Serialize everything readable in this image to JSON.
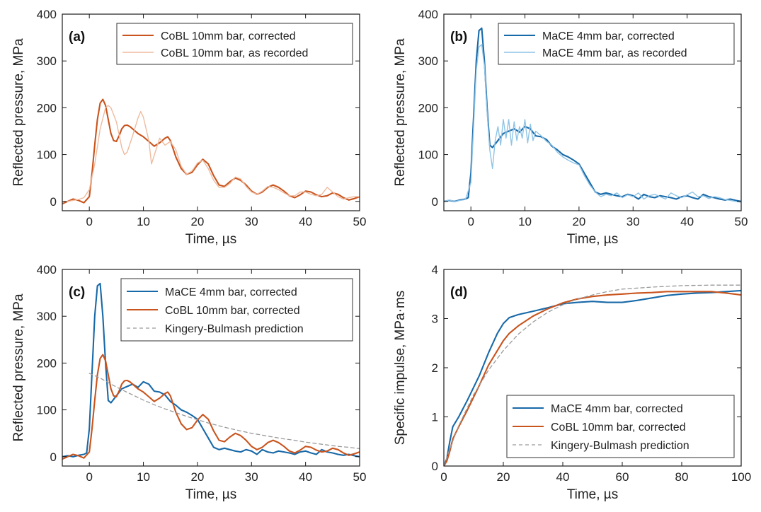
{
  "colors": {
    "corrected_orange": "#c9541e",
    "recorded_orange": "#eebb9f",
    "corrected_blue": "#1869a8",
    "recorded_blue": "#8fc4e6",
    "prediction_grey": "#9a9a9a"
  },
  "chart_data": [
    {
      "panel": "(a)",
      "type": "line",
      "xlabel": "Time, µs",
      "ylabel": "Reflected pressure, MPa",
      "xlim": [
        -5,
        50
      ],
      "ylim": [
        -20,
        400
      ],
      "xticks": [
        0,
        10,
        20,
        30,
        40,
        50
      ],
      "yticks": [
        0,
        100,
        200,
        300,
        400
      ],
      "legend_position": "top-right",
      "series": [
        {
          "name": "CoBL 10mm bar, corrected",
          "style": "corrected_orange",
          "x": [
            -5,
            -4,
            -3,
            -2,
            -1,
            0,
            0.5,
            1,
            1.5,
            2,
            2.5,
            3,
            3.5,
            4,
            4.5,
            5,
            5.5,
            6,
            6.5,
            7,
            7.5,
            8,
            9,
            10,
            11,
            12,
            13,
            14,
            14.5,
            15,
            16,
            17,
            18,
            19,
            20,
            21,
            22,
            23,
            24,
            25,
            26,
            27,
            28,
            29,
            30,
            31,
            32,
            33,
            34,
            35,
            36,
            37,
            38,
            39,
            40,
            41,
            42,
            43,
            44,
            45,
            46,
            47,
            48,
            49,
            50
          ],
          "y": [
            -5,
            0,
            5,
            2,
            -3,
            10,
            60,
            120,
            175,
            210,
            218,
            205,
            175,
            145,
            130,
            128,
            140,
            155,
            162,
            163,
            160,
            155,
            145,
            138,
            128,
            118,
            125,
            135,
            138,
            130,
            95,
            70,
            58,
            62,
            78,
            90,
            80,
            55,
            35,
            32,
            42,
            50,
            45,
            35,
            22,
            15,
            20,
            30,
            35,
            30,
            22,
            12,
            8,
            14,
            22,
            20,
            14,
            10,
            12,
            18,
            15,
            8,
            3,
            6,
            10
          ]
        },
        {
          "name": "CoBL 10mm bar, as recorded",
          "style": "recorded_orange",
          "x": [
            -5,
            -4,
            -3,
            -2,
            -1,
            0,
            1,
            2,
            3,
            3.5,
            4,
            5,
            6,
            6.5,
            7,
            8,
            9,
            9.5,
            10,
            11,
            11.5,
            12,
            13,
            14,
            15,
            16,
            17,
            18,
            19,
            20,
            21,
            22,
            23,
            24,
            25,
            26,
            27,
            28,
            29,
            30,
            31,
            32,
            33,
            34,
            35,
            36,
            37,
            38,
            39,
            40,
            41,
            42,
            43,
            44,
            45,
            46,
            47,
            48,
            49,
            50
          ],
          "y": [
            0,
            0,
            2,
            4,
            8,
            25,
            80,
            155,
            200,
            205,
            200,
            170,
            115,
            100,
            105,
            140,
            178,
            192,
            180,
            130,
            80,
            98,
            135,
            120,
            128,
            110,
            75,
            58,
            65,
            82,
            88,
            70,
            45,
            30,
            30,
            38,
            52,
            48,
            32,
            20,
            15,
            22,
            32,
            30,
            25,
            18,
            12,
            12,
            20,
            20,
            15,
            12,
            15,
            30,
            20,
            10,
            5,
            8,
            10,
            10
          ]
        }
      ]
    },
    {
      "panel": "(b)",
      "type": "line",
      "xlabel": "Time, µs",
      "ylabel": "Reflected pressure, MPa",
      "xlim": [
        -5,
        50
      ],
      "ylim": [
        -20,
        400
      ],
      "xticks": [
        0,
        10,
        20,
        30,
        40,
        50
      ],
      "yticks": [
        0,
        100,
        200,
        300,
        400
      ],
      "legend_position": "top-right",
      "series": [
        {
          "name": "MaCE 4mm bar, corrected",
          "style": "corrected_blue",
          "x": [
            -5,
            -4,
            -3,
            -2,
            -1,
            -0.5,
            0,
            0.5,
            1,
            1.5,
            2,
            2.5,
            3,
            3.5,
            4,
            5,
            6,
            7,
            8,
            9,
            10,
            11,
            12,
            13,
            14,
            15,
            16,
            17,
            18,
            19,
            20,
            21,
            22,
            23,
            24,
            25,
            26,
            27,
            28,
            29,
            30,
            31,
            32,
            33,
            34,
            35,
            36,
            37,
            38,
            39,
            40,
            41,
            42,
            43,
            44,
            45,
            46,
            47,
            48,
            49,
            50
          ],
          "y": [
            0,
            2,
            0,
            3,
            5,
            8,
            60,
            180,
            300,
            365,
            370,
            300,
            200,
            120,
            115,
            130,
            145,
            150,
            155,
            148,
            160,
            155,
            140,
            138,
            132,
            118,
            110,
            100,
            95,
            88,
            80,
            60,
            40,
            20,
            15,
            18,
            15,
            12,
            10,
            15,
            12,
            5,
            15,
            10,
            8,
            12,
            10,
            8,
            5,
            10,
            12,
            8,
            5,
            15,
            10,
            8,
            5,
            3,
            5,
            2,
            0
          ]
        },
        {
          "name": "MaCE 4mm bar, as recorded",
          "style": "recorded_blue",
          "x": [
            -5,
            -4,
            -3,
            -2,
            -1,
            0,
            0.5,
            1,
            1.5,
            2,
            2.5,
            3,
            3.5,
            4,
            4.5,
            5,
            5.5,
            6,
            6.5,
            7,
            7.5,
            8,
            8.5,
            9,
            9.5,
            10,
            10.5,
            11,
            11.5,
            12,
            13,
            14,
            15,
            16,
            17,
            18,
            19,
            20,
            21,
            22,
            23,
            24,
            25,
            26,
            27,
            28,
            29,
            30,
            31,
            32,
            33,
            34,
            35,
            36,
            37,
            38,
            39,
            40,
            41,
            42,
            43,
            44,
            45,
            46,
            47,
            48,
            49,
            50
          ],
          "y": [
            0,
            3,
            0,
            2,
            4,
            40,
            160,
            280,
            330,
            335,
            290,
            190,
            110,
            70,
            130,
            160,
            120,
            175,
            135,
            175,
            120,
            170,
            130,
            160,
            135,
            175,
            125,
            165,
            130,
            150,
            140,
            128,
            120,
            105,
            95,
            88,
            82,
            78,
            55,
            35,
            20,
            10,
            15,
            12,
            18,
            8,
            14,
            10,
            18,
            5,
            12,
            15,
            10,
            5,
            18,
            12,
            8,
            14,
            20,
            10,
            12,
            6,
            10,
            8,
            4,
            2,
            0,
            -2
          ]
        }
      ]
    },
    {
      "panel": "(c)",
      "type": "line",
      "xlabel": "Time, µs",
      "ylabel": "Reflected pressure, MPa",
      "xlim": [
        -5,
        50
      ],
      "ylim": [
        -20,
        400
      ],
      "xticks": [
        0,
        10,
        20,
        30,
        40,
        50
      ],
      "yticks": [
        0,
        100,
        200,
        300,
        400
      ],
      "legend_position": "top-right",
      "series": [
        {
          "name": "MaCE 4mm bar, corrected",
          "style": "corrected_blue",
          "x": [
            -5,
            -4,
            -3,
            -2,
            -1,
            -0.5,
            0,
            0.5,
            1,
            1.5,
            2,
            2.5,
            3,
            3.5,
            4,
            5,
            6,
            7,
            8,
            9,
            10,
            11,
            12,
            13,
            14,
            15,
            16,
            17,
            18,
            19,
            20,
            21,
            22,
            23,
            24,
            25,
            26,
            27,
            28,
            29,
            30,
            31,
            32,
            33,
            34,
            35,
            36,
            37,
            38,
            39,
            40,
            41,
            42,
            43,
            44,
            45,
            46,
            47,
            48,
            49,
            50
          ],
          "y": [
            0,
            2,
            0,
            3,
            5,
            8,
            60,
            180,
            300,
            365,
            370,
            300,
            200,
            120,
            115,
            130,
            145,
            150,
            155,
            148,
            160,
            155,
            140,
            138,
            132,
            118,
            110,
            100,
            95,
            88,
            80,
            60,
            40,
            20,
            15,
            18,
            15,
            12,
            10,
            15,
            12,
            5,
            15,
            10,
            8,
            12,
            10,
            8,
            5,
            10,
            12,
            8,
            5,
            15,
            10,
            8,
            5,
            3,
            5,
            2,
            0
          ]
        },
        {
          "name": "CoBL 10mm bar, corrected",
          "style": "corrected_orange",
          "x": [
            -5,
            -4,
            -3,
            -2,
            -1,
            0,
            0.5,
            1,
            1.5,
            2,
            2.5,
            3,
            3.5,
            4,
            4.5,
            5,
            5.5,
            6,
            6.5,
            7,
            7.5,
            8,
            9,
            10,
            11,
            12,
            13,
            14,
            14.5,
            15,
            16,
            17,
            18,
            19,
            20,
            21,
            22,
            23,
            24,
            25,
            26,
            27,
            28,
            29,
            30,
            31,
            32,
            33,
            34,
            35,
            36,
            37,
            38,
            39,
            40,
            41,
            42,
            43,
            44,
            45,
            46,
            47,
            48,
            49,
            50
          ],
          "y": [
            -5,
            0,
            5,
            2,
            -3,
            10,
            60,
            120,
            175,
            210,
            218,
            205,
            175,
            145,
            130,
            128,
            140,
            155,
            162,
            163,
            160,
            155,
            145,
            138,
            128,
            118,
            125,
            135,
            138,
            130,
            95,
            70,
            58,
            62,
            78,
            90,
            80,
            55,
            35,
            32,
            42,
            50,
            45,
            35,
            22,
            15,
            20,
            30,
            35,
            30,
            22,
            12,
            8,
            14,
            22,
            20,
            14,
            10,
            12,
            18,
            15,
            8,
            3,
            6,
            10
          ]
        },
        {
          "name": "Kingery-Bulmash prediction",
          "style": "prediction_grey",
          "dashed": true,
          "x": [
            0,
            2,
            4,
            6,
            8,
            10,
            12,
            14,
            16,
            18,
            20,
            22,
            24,
            26,
            28,
            30,
            32,
            34,
            36,
            38,
            40,
            42,
            44,
            46,
            48,
            50
          ],
          "y": [
            178,
            168,
            155,
            143,
            132,
            121,
            111,
            102,
            94,
            86,
            79,
            72,
            66,
            60,
            55,
            50,
            46,
            42,
            38,
            35,
            31,
            28,
            25,
            22,
            20,
            17
          ]
        }
      ]
    },
    {
      "panel": "(d)",
      "type": "line",
      "xlabel": "Time, µs",
      "ylabel": "Specific impulse, MPa·ms",
      "xlim": [
        0,
        100
      ],
      "ylim": [
        0,
        4
      ],
      "xticks": [
        0,
        20,
        40,
        60,
        80,
        100
      ],
      "yticks": [
        0,
        1,
        2,
        3,
        4
      ],
      "legend_position": "bottom-right",
      "series": [
        {
          "name": "MaCE 4mm bar, corrected",
          "style": "corrected_blue",
          "x": [
            0,
            1,
            2,
            3,
            5,
            8,
            10,
            12,
            15,
            18,
            20,
            22,
            25,
            30,
            35,
            40,
            45,
            50,
            55,
            60,
            65,
            70,
            75,
            80,
            85,
            90,
            95,
            100
          ],
          "y": [
            0,
            0.15,
            0.5,
            0.8,
            1.0,
            1.35,
            1.6,
            1.85,
            2.3,
            2.7,
            2.9,
            3.02,
            3.08,
            3.15,
            3.22,
            3.3,
            3.33,
            3.35,
            3.33,
            3.33,
            3.37,
            3.42,
            3.47,
            3.5,
            3.52,
            3.53,
            3.55,
            3.57
          ]
        },
        {
          "name": "CoBL 10mm bar, corrected",
          "style": "corrected_orange",
          "x": [
            0,
            1,
            2,
            3,
            5,
            8,
            10,
            12,
            15,
            18,
            20,
            22,
            25,
            30,
            35,
            40,
            45,
            50,
            55,
            60,
            65,
            70,
            75,
            80,
            85,
            90,
            95,
            100
          ],
          "y": [
            0,
            0.1,
            0.3,
            0.55,
            0.8,
            1.15,
            1.4,
            1.65,
            2.05,
            2.35,
            2.55,
            2.7,
            2.85,
            3.05,
            3.2,
            3.32,
            3.4,
            3.45,
            3.48,
            3.5,
            3.52,
            3.53,
            3.55,
            3.55,
            3.55,
            3.55,
            3.52,
            3.48
          ]
        },
        {
          "name": "Kingery-Bulmash prediction",
          "style": "prediction_grey",
          "dashed": true,
          "x": [
            0,
            2,
            5,
            8,
            10,
            15,
            20,
            25,
            30,
            35,
            40,
            45,
            50,
            55,
            60,
            70,
            80,
            90,
            100
          ],
          "y": [
            0,
            0.35,
            0.82,
            1.2,
            1.45,
            1.95,
            2.35,
            2.68,
            2.93,
            3.13,
            3.28,
            3.4,
            3.48,
            3.55,
            3.6,
            3.64,
            3.67,
            3.68,
            3.68
          ]
        }
      ]
    }
  ]
}
